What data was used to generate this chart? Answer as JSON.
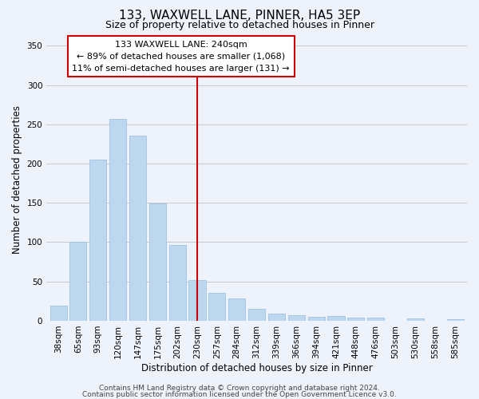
{
  "title": "133, WAXWELL LANE, PINNER, HA5 3EP",
  "subtitle": "Size of property relative to detached houses in Pinner",
  "xlabel": "Distribution of detached houses by size in Pinner",
  "ylabel": "Number of detached properties",
  "categories": [
    "38sqm",
    "65sqm",
    "93sqm",
    "120sqm",
    "147sqm",
    "175sqm",
    "202sqm",
    "230sqm",
    "257sqm",
    "284sqm",
    "312sqm",
    "339sqm",
    "366sqm",
    "394sqm",
    "421sqm",
    "448sqm",
    "476sqm",
    "503sqm",
    "530sqm",
    "558sqm",
    "585sqm"
  ],
  "bar_heights": [
    19,
    100,
    205,
    257,
    236,
    149,
    96,
    52,
    35,
    28,
    15,
    9,
    7,
    5,
    6,
    4,
    4,
    0,
    3,
    0,
    2
  ],
  "bar_color": "#BDD7EE",
  "bar_edgecolor": "#9DC3E6",
  "highlight_color": "#CC0000",
  "vline_x": 7.0,
  "ylim": [
    0,
    360
  ],
  "yticks": [
    0,
    50,
    100,
    150,
    200,
    250,
    300,
    350
  ],
  "annotation_title": "133 WAXWELL LANE: 240sqm",
  "annotation_line1": "← 89% of detached houses are smaller (1,068)",
  "annotation_line2": "11% of semi-detached houses are larger (131) →",
  "annotation_box_color": "#FFFFFF",
  "annotation_box_edgecolor": "#CC0000",
  "footer1": "Contains HM Land Registry data © Crown copyright and database right 2024.",
  "footer2": "Contains public sector information licensed under the Open Government Licence v3.0.",
  "background_color": "#EEF2FA",
  "grid_color": "#C8C8C8",
  "title_fontsize": 11,
  "subtitle_fontsize": 9,
  "axis_label_fontsize": 8.5,
  "tick_fontsize": 7.5,
  "annotation_fontsize": 8,
  "footer_fontsize": 6.5
}
